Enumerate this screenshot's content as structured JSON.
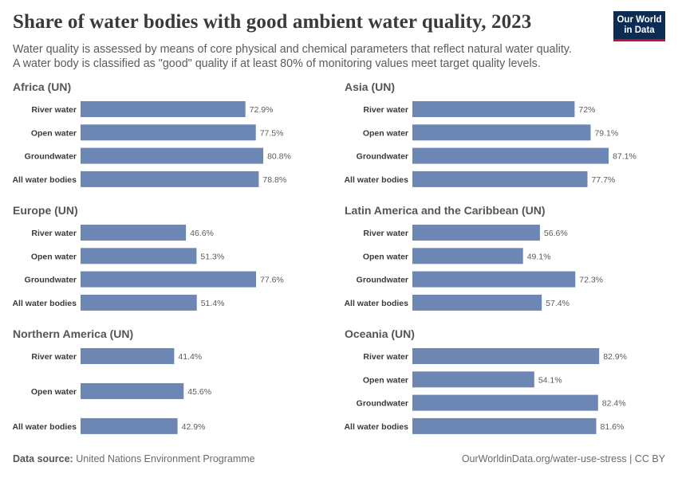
{
  "header": {
    "title": "Share of water bodies with good ambient water quality, 2023",
    "subtitle_line1": "Water quality is assessed by means of core physical and chemical parameters that reflect natural water quality.",
    "subtitle_line2": "A water body is classified as \"good\" quality if at least 80% of monitoring values meet target quality levels.",
    "logo_line1": "Our World",
    "logo_line2": "in Data"
  },
  "footer": {
    "source_label": "Data source:",
    "source_value": "United Nations Environment Programme",
    "link": "OurWorldinData.org/water-use-stress | CC BY"
  },
  "colors": {
    "bar": "#6d87b5",
    "logo_bg": "#0c2c54",
    "logo_accent": "#c8102e"
  },
  "chart_data": [
    {
      "type": "bar",
      "orientation": "horizontal",
      "title": "Africa (UN)",
      "unit": "%",
      "categories": [
        "River water",
        "Open water",
        "Groundwater",
        "All water bodies"
      ],
      "values": [
        72.9,
        77.5,
        80.8,
        78.8
      ],
      "labels": [
        "72.9%",
        "77.5%",
        "80.8%",
        "78.8%"
      ]
    },
    {
      "type": "bar",
      "orientation": "horizontal",
      "title": "Asia (UN)",
      "unit": "%",
      "categories": [
        "River water",
        "Open water",
        "Groundwater",
        "All water bodies"
      ],
      "values": [
        72,
        79.1,
        87.1,
        77.7
      ],
      "labels": [
        "72%",
        "79.1%",
        "87.1%",
        "77.7%"
      ]
    },
    {
      "type": "bar",
      "orientation": "horizontal",
      "title": "Europe (UN)",
      "unit": "%",
      "categories": [
        "River water",
        "Open water",
        "Groundwater",
        "All water bodies"
      ],
      "values": [
        46.6,
        51.3,
        77.6,
        51.4
      ],
      "labels": [
        "46.6%",
        "51.3%",
        "77.6%",
        "51.4%"
      ]
    },
    {
      "type": "bar",
      "orientation": "horizontal",
      "title": "Latin America and the Caribbean (UN)",
      "unit": "%",
      "categories": [
        "River water",
        "Open water",
        "Groundwater",
        "All water bodies"
      ],
      "values": [
        56.6,
        49.1,
        72.3,
        57.4
      ],
      "labels": [
        "56.6%",
        "49.1%",
        "72.3%",
        "57.4%"
      ]
    },
    {
      "type": "bar",
      "orientation": "horizontal",
      "title": "Northern America (UN)",
      "unit": "%",
      "categories": [
        "River water",
        "Open water",
        "All water bodies"
      ],
      "values": [
        41.4,
        45.6,
        42.9
      ],
      "labels": [
        "41.4%",
        "45.6%",
        "42.9%"
      ]
    },
    {
      "type": "bar",
      "orientation": "horizontal",
      "title": "Oceania (UN)",
      "unit": "%",
      "categories": [
        "River water",
        "Open water",
        "Groundwater",
        "All water bodies"
      ],
      "values": [
        82.9,
        54.1,
        82.4,
        81.6
      ],
      "labels": [
        "82.9%",
        "54.1%",
        "82.4%",
        "81.6%"
      ]
    }
  ]
}
